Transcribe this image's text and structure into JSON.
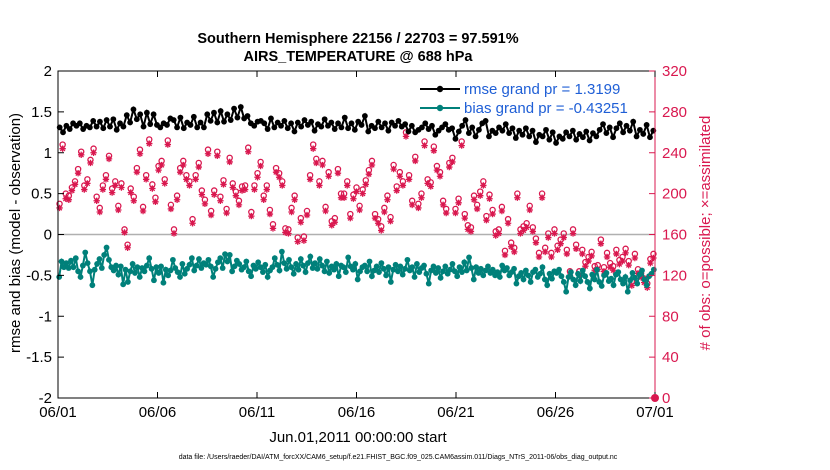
{
  "chart_data": {
    "type": "line",
    "title_line1": "Southern Hemisphere 22156 / 22703 = 97.591%",
    "title_line2": "AIRS_TEMPERATURE @ 688 hPa",
    "xlabel": "Jun.01,2011 00:00:00 start",
    "ylabel": "rmse and bias (model - observation)",
    "ylabel_right": "# of obs: o=possible; ×=assimilated",
    "footer": "data file: /Users/raeder/DAI/ATM_forcXX/CAM6_setup/f.e21.FHIST_BGC.f09_025.CAM6assim.011/Diags_NTrS_2011-06/obs_diag_output.nc",
    "xlim": [
      0,
      30
    ],
    "ylim": [
      -2,
      2
    ],
    "ylim_right": [
      0,
      320
    ],
    "x_ticks": [
      0,
      5,
      10,
      15,
      20,
      25,
      30
    ],
    "x_tick_labels": [
      "06/01",
      "06/06",
      "06/11",
      "06/16",
      "06/21",
      "06/26",
      "07/01"
    ],
    "y_ticks": [
      -2,
      -1.5,
      -1,
      -0.5,
      0,
      0.5,
      1,
      1.5,
      2
    ],
    "y_tick_labels": [
      "-2",
      "-1.5",
      "-1",
      "-0.5",
      "0",
      "0.5",
      "1",
      "1.5",
      "2"
    ],
    "y_ticks_right": [
      0,
      40,
      80,
      120,
      160,
      200,
      240,
      280,
      320
    ],
    "y_tick_labels_right": [
      "0",
      "40",
      "80",
      "120",
      "160",
      "200",
      "240",
      "280",
      "320"
    ],
    "legend_position": "top-right",
    "grid": false,
    "zero_line": 0,
    "series": [
      {
        "name": "rmse grand pr = 1.3199",
        "color": "#000000",
        "marker": "filled-circle",
        "axis": "left",
        "values": [
          1.31,
          1.25,
          1.33,
          1.29,
          1.36,
          1.33,
          1.36,
          1.29,
          1.33,
          1.31,
          1.39,
          1.32,
          1.38,
          1.3,
          1.4,
          1.32,
          1.41,
          1.28,
          1.36,
          1.32,
          1.46,
          1.37,
          1.53,
          1.41,
          1.47,
          1.32,
          1.49,
          1.35,
          1.47,
          1.34,
          1.31,
          1.36,
          1.34,
          1.42,
          1.4,
          1.31,
          1.43,
          1.3,
          1.37,
          1.34,
          1.44,
          1.31,
          1.37,
          1.31,
          1.47,
          1.39,
          1.49,
          1.37,
          1.51,
          1.38,
          1.47,
          1.4,
          1.54,
          1.43,
          1.56,
          1.42,
          1.45,
          1.36,
          1.33,
          1.38,
          1.39,
          1.36,
          1.29,
          1.42,
          1.31,
          1.37,
          1.33,
          1.39,
          1.3,
          1.36,
          1.26,
          1.37,
          1.32,
          1.4,
          1.34,
          1.38,
          1.27,
          1.35,
          1.32,
          1.41,
          1.33,
          1.37,
          1.29,
          1.36,
          1.31,
          1.43,
          1.3,
          1.36,
          1.28,
          1.38,
          1.34,
          1.45,
          1.26,
          1.33,
          1.3,
          1.38,
          1.31,
          1.36,
          1.27,
          1.37,
          1.33,
          1.39,
          1.32,
          1.35,
          1.26,
          1.33,
          1.25,
          1.28,
          1.31,
          1.36,
          1.29,
          1.33,
          1.22,
          1.27,
          1.31,
          1.35,
          1.28,
          1.3,
          1.17,
          1.26,
          1.33,
          1.4,
          1.24,
          1.31,
          1.2,
          1.28,
          1.36,
          1.39,
          1.2,
          1.27,
          1.24,
          1.31,
          1.27,
          1.35,
          1.24,
          1.3,
          1.18,
          1.27,
          1.22,
          1.3,
          1.2,
          1.27,
          1.13,
          1.22,
          1.2,
          1.28,
          1.16,
          1.25,
          1.12,
          1.2,
          1.17,
          1.25,
          1.2,
          1.27,
          1.16,
          1.23,
          1.19,
          1.26,
          1.15,
          1.24,
          1.2,
          1.28,
          1.35,
          1.24,
          1.31,
          1.19,
          1.3,
          1.36,
          1.25,
          1.33,
          1.27,
          1.38,
          1.2,
          1.28,
          1.23,
          1.34,
          1.19,
          1.27
        ]
      },
      {
        "name": "bias grand pr = -0.43251",
        "color": "#00807a",
        "marker": "filled-circle",
        "axis": "left",
        "values": [
          -0.52,
          -0.33,
          -0.4,
          -0.35,
          -0.41,
          -0.32,
          -0.4,
          -0.29,
          -0.45,
          -0.52,
          -0.38,
          -0.22,
          -0.35,
          -0.45,
          -0.62,
          -0.43,
          -0.36,
          -0.3,
          -0.41,
          -0.25,
          -0.16,
          -0.31,
          -0.4,
          -0.44,
          -0.38,
          -0.49,
          -0.39,
          -0.61,
          -0.43,
          -0.58,
          -0.45,
          -0.36,
          -0.47,
          -0.4,
          -0.52,
          -0.41,
          -0.45,
          -0.38,
          -0.29,
          -0.42,
          -0.56,
          -0.4,
          -0.47,
          -0.39,
          -0.59,
          -0.43,
          -0.5,
          -0.44,
          -0.31,
          -0.41,
          -0.46,
          -0.52,
          -0.36,
          -0.48,
          -0.42,
          -0.37,
          -0.29,
          -0.44,
          -0.38,
          -0.3,
          -0.41,
          -0.35,
          -0.37,
          -0.31,
          -0.39,
          -0.52,
          -0.42,
          -0.34,
          -0.29,
          -0.41,
          -0.24,
          -0.33,
          -0.25,
          -0.45,
          -0.39,
          -0.32,
          -0.36,
          -0.43,
          -0.4,
          -0.33,
          -0.45,
          -0.51,
          -0.38,
          -0.42,
          -0.34,
          -0.4,
          -0.46,
          -0.37,
          -0.52,
          -0.44,
          -0.4,
          -0.29,
          -0.37,
          -0.44,
          -0.21,
          -0.35,
          -0.42,
          -0.31,
          -0.4,
          -0.48,
          -0.36,
          -0.43,
          -0.3,
          -0.38,
          -0.46,
          -0.35,
          -0.27,
          -0.41,
          -0.35,
          -0.42,
          -0.3,
          -0.38,
          -0.45,
          -0.33,
          -0.47,
          -0.39,
          -0.43,
          -0.36,
          -0.51,
          -0.38,
          -0.4,
          -0.46,
          -0.28,
          -0.39,
          -0.43,
          -0.36,
          -0.55,
          -0.45,
          -0.4,
          -0.38,
          -0.45,
          -0.33,
          -0.51,
          -0.44,
          -0.39,
          -0.46,
          -0.35,
          -0.42,
          -0.5,
          -0.4,
          -0.58,
          -0.43,
          -0.37,
          -0.45,
          -0.39,
          -0.49,
          -0.42,
          -0.31,
          -0.44,
          -0.4,
          -0.52,
          -0.36,
          -0.46,
          -0.41,
          -0.38,
          -0.48,
          -0.6,
          -0.44,
          -0.39,
          -0.47,
          -0.41,
          -0.53,
          -0.45,
          -0.39,
          -0.48,
          -0.43,
          -0.36,
          -0.45,
          -0.51,
          -0.4,
          -0.46,
          -0.34,
          -0.44,
          -0.28,
          -0.41,
          -0.55,
          -0.4,
          -0.47,
          -0.42,
          -0.5,
          -0.44,
          -0.39,
          -0.47,
          -0.43,
          -0.5,
          -0.46,
          -0.52,
          -0.38,
          -0.44,
          -0.41,
          -0.5,
          -0.46,
          -0.42,
          -0.6,
          -0.51,
          -0.47,
          -0.55,
          -0.44,
          -0.5,
          -0.58,
          -0.46,
          -0.43,
          -0.52,
          -0.48,
          -0.4,
          -0.55,
          -0.62,
          -0.48,
          -0.54,
          -0.45,
          -0.47,
          -0.43,
          -0.51,
          -0.58,
          -0.7,
          -0.52,
          -0.46,
          -0.55,
          -0.62,
          -0.48,
          -0.57,
          -0.44,
          -0.51,
          -0.58,
          -0.66,
          -0.49,
          -0.55,
          -0.43,
          -0.58,
          -0.63,
          -0.5,
          -0.47,
          -0.57,
          -0.54,
          -0.62,
          -0.49,
          -0.46,
          -0.55,
          -0.6,
          -0.52,
          -0.7,
          -0.56,
          -0.47,
          -0.53,
          -0.6,
          -0.49,
          -0.44,
          -0.55,
          -0.62,
          -0.51,
          -0.48,
          -0.43
        ]
      },
      {
        "name": "possible",
        "color": "#d9184f",
        "marker": "open-circle",
        "axis": "right",
        "values": [
          190,
          248,
          200,
          198,
          206,
          212,
          224,
          241,
          208,
          214,
          233,
          244,
          197,
          186,
          208,
          218,
          237,
          205,
          212,
          188,
          210,
          165,
          150,
          205,
          197,
          225,
          243,
          187,
          218,
          253,
          209,
          196,
          227,
          232,
          214,
          252,
          189,
          165,
          198,
          225,
          232,
          218,
          212,
          175,
          218,
          230,
          203,
          194,
          243,
          183,
          203,
          241,
          197,
          213,
          185,
          235,
          210,
          202,
          193,
          207,
          208,
          245,
          182,
          208,
          220,
          231,
          198,
          208,
          184,
          170,
          225,
          220,
          212,
          166,
          165,
          186,
          198,
          157,
          176,
          158,
          183,
          218,
          248,
          234,
          212,
          232,
          187,
          221,
          173,
          176,
          224,
          200,
          200,
          212,
          180,
          199,
          206,
          188,
          204,
          213,
          223,
          232,
          180,
          175,
          168,
          186,
          198,
          177,
          228,
          207,
          221,
          212,
          260,
          218,
          193,
          236,
          190,
          200,
          251,
          214,
          211,
          246,
          227,
          221,
          193,
          185,
          230,
          235,
          185,
          195,
          251,
          180,
          169,
          167,
          198,
          189,
          202,
          212,
          178,
          199,
          184,
          163,
          165,
          187,
          144,
          175,
          152,
          147,
          200,
          165,
          168,
          171,
          188,
          167,
          156,
          142,
          200,
          147,
          161,
          142,
          165,
          149,
          155,
          161,
          145,
          124,
          165,
          150,
          124,
          145,
          133,
          138,
          143,
          129,
          130,
          155,
          128,
          142,
          132,
          129,
          145,
          135,
          138,
          146,
          134,
          114,
          141,
          126,
          122,
          117,
          112,
          136,
          141
        ]
      },
      {
        "name": "assimilated",
        "color": "#d9184f",
        "marker": "asterisk",
        "axis": "right",
        "values": [
          186,
          244,
          195,
          194,
          203,
          209,
          220,
          238,
          204,
          210,
          230,
          240,
          193,
          182,
          204,
          214,
          234,
          201,
          208,
          184,
          206,
          162,
          147,
          201,
          193,
          221,
          239,
          183,
          214,
          249,
          205,
          192,
          223,
          228,
          210,
          248,
          185,
          161,
          194,
          221,
          228,
          214,
          208,
          171,
          214,
          226,
          199,
          190,
          239,
          179,
          199,
          237,
          193,
          209,
          181,
          231,
          206,
          198,
          189,
          203,
          204,
          241,
          178,
          204,
          216,
          227,
          194,
          204,
          180,
          166,
          221,
          216,
          208,
          162,
          161,
          182,
          194,
          153,
          172,
          154,
          179,
          214,
          244,
          230,
          208,
          228,
          183,
          217,
          169,
          172,
          220,
          196,
          196,
          208,
          176,
          195,
          202,
          184,
          200,
          209,
          219,
          228,
          176,
          171,
          164,
          182,
          194,
          173,
          224,
          203,
          217,
          208,
          256,
          214,
          189,
          232,
          186,
          196,
          247,
          210,
          207,
          242,
          223,
          217,
          189,
          181,
          226,
          231,
          181,
          191,
          247,
          176,
          165,
          163,
          194,
          185,
          198,
          208,
          174,
          195,
          180,
          159,
          161,
          183,
          140,
          171,
          148,
          143,
          196,
          161,
          164,
          167,
          184,
          163,
          152,
          138,
          196,
          143,
          157,
          138,
          161,
          145,
          151,
          157,
          141,
          120,
          161,
          146,
          120,
          141,
          129,
          134,
          139,
          125,
          126,
          151,
          124,
          138,
          128,
          125,
          141,
          131,
          134,
          142,
          130,
          110,
          137,
          122,
          118,
          113,
          108,
          132,
          137
        ]
      }
    ]
  }
}
